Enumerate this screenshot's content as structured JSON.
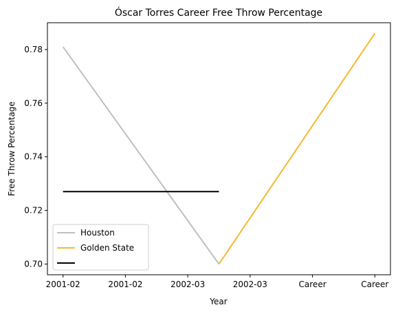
{
  "chart_data": {
    "type": "line",
    "title": "Óscar Torres Career Free Throw Percentage",
    "xlabel": "Year",
    "ylabel": "Free Throw Percentage",
    "categories": [
      "2001-02",
      "2001-02",
      "2002-03",
      "2002-03",
      "Career",
      "Career"
    ],
    "xlim": [
      -0.25,
      5.25
    ],
    "ylim": [
      0.696,
      0.79
    ],
    "yticks": [
      0.7,
      0.72,
      0.74,
      0.76,
      0.78
    ],
    "ytick_labels": [
      "0.70",
      "0.72",
      "0.74",
      "0.76",
      "0.78"
    ],
    "grid": false,
    "legend_position": "lower-left",
    "series": [
      {
        "name": "Houston",
        "color": "#bfbfbf",
        "x": [
          0,
          2.5
        ],
        "y": [
          0.781,
          0.7
        ]
      },
      {
        "name": "Golden State",
        "color": "#f5b82e",
        "x": [
          2.5,
          5
        ],
        "y": [
          0.7,
          0.786
        ]
      },
      {
        "name": "",
        "color": "#000000",
        "x": [
          0,
          2.5
        ],
        "y": [
          0.727,
          0.727
        ]
      }
    ]
  }
}
